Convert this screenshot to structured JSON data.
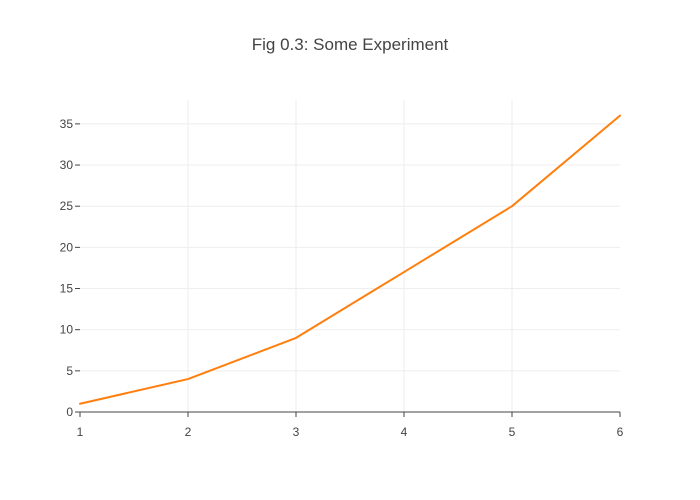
{
  "chart_data": {
    "type": "line",
    "title": "Fig 0.3: Some Experiment",
    "xlabel": "",
    "ylabel": "",
    "x": [
      1,
      2,
      3,
      4,
      5,
      6
    ],
    "series": [
      {
        "values": [
          1,
          4,
          9,
          17,
          25,
          36
        ],
        "color": "#ff7f0e"
      }
    ],
    "xlim": [
      1,
      6
    ],
    "ylim": [
      0,
      37.9
    ],
    "xticks": [
      1,
      2,
      3,
      4,
      5,
      6
    ],
    "yticks": [
      0,
      5,
      10,
      15,
      20,
      25,
      30,
      35
    ],
    "grid": true,
    "legend": "none"
  }
}
